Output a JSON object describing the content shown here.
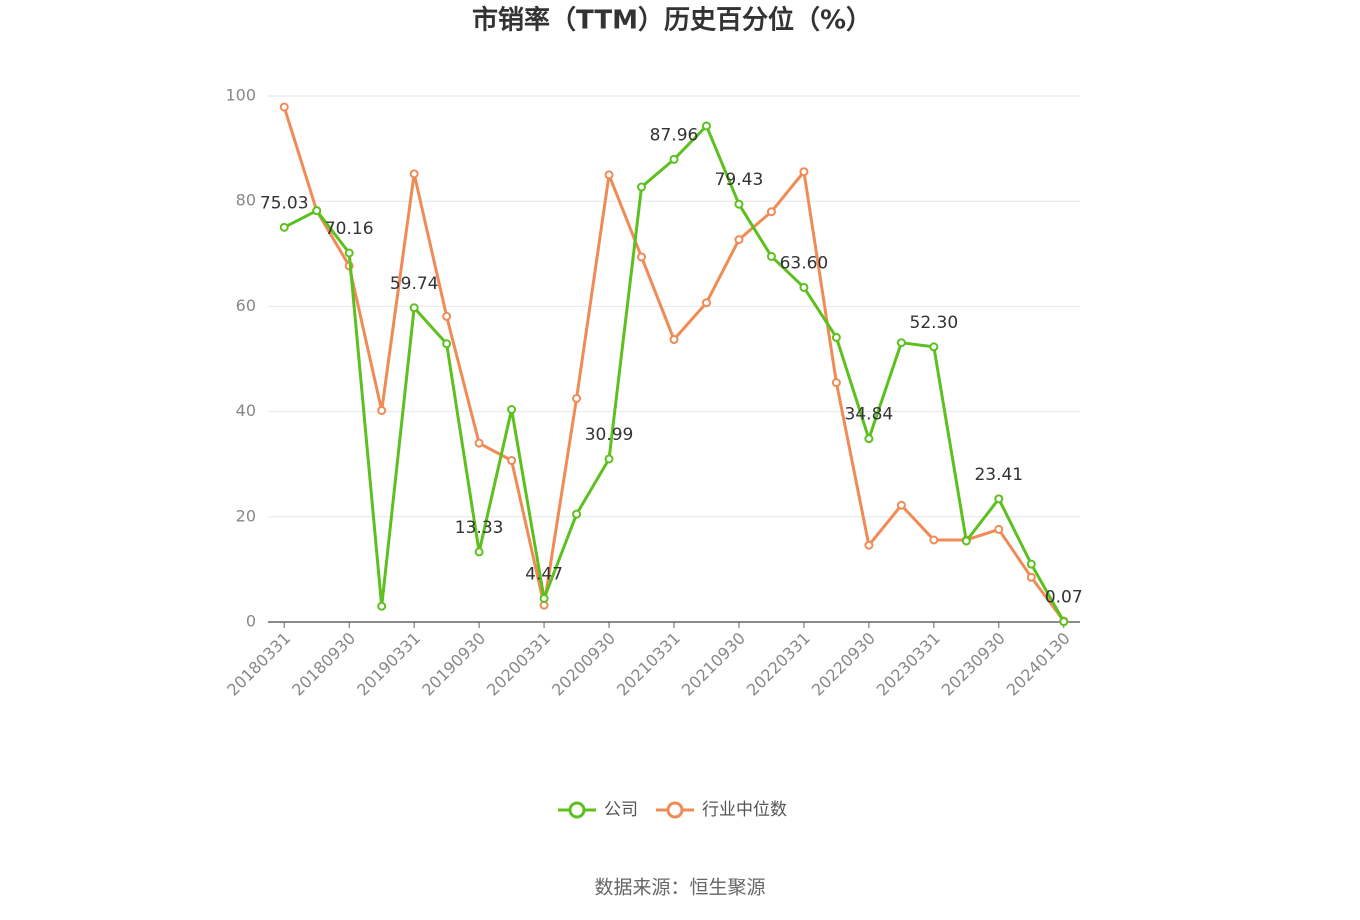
{
  "chart_data": {
    "type": "line",
    "title": "市销率（TTM）历史百分位（%）",
    "source": "数据来源：恒生聚源",
    "categories": [
      "20180331",
      null,
      "20180930",
      null,
      "20190331",
      null,
      "20190930",
      null,
      "20200331",
      null,
      "20200930",
      null,
      "20210331",
      null,
      "20210930",
      null,
      "20220331",
      null,
      "20220930",
      null,
      "20230331",
      null,
      "20230930",
      null,
      "20240130"
    ],
    "series": [
      {
        "name": "公司",
        "color": "#5cc01f",
        "values": [
          75.03,
          78.2,
          70.16,
          3.0,
          59.74,
          52.9,
          13.33,
          40.4,
          4.47,
          20.5,
          30.99,
          82.7,
          87.96,
          94.3,
          79.43,
          69.5,
          63.6,
          54.1,
          34.84,
          53.1,
          52.3,
          15.4,
          23.41,
          11.0,
          0.07
        ],
        "value_labels": [
          "75.03",
          null,
          "70.16",
          null,
          "59.74",
          null,
          "13.33",
          null,
          "4.47",
          null,
          "30.99",
          null,
          "87.96",
          null,
          "79.43",
          null,
          "63.60",
          null,
          "34.84",
          null,
          "52.30",
          null,
          "23.41",
          null,
          "0.07"
        ]
      },
      {
        "name": "行业中位数",
        "color": "#f08b55",
        "values": [
          97.9,
          78.2,
          67.7,
          40.2,
          85.2,
          58.1,
          34.0,
          30.7,
          3.2,
          42.5,
          85.0,
          69.4,
          53.7,
          60.7,
          72.7,
          78.0,
          85.6,
          45.5,
          14.6,
          22.2,
          15.6,
          15.6,
          17.6,
          8.5,
          0.2
        ]
      }
    ],
    "ylim": [
      0,
      100
    ],
    "yticks": [
      0,
      20,
      40,
      60,
      80,
      100
    ],
    "grid": true,
    "legend": "bottom"
  }
}
